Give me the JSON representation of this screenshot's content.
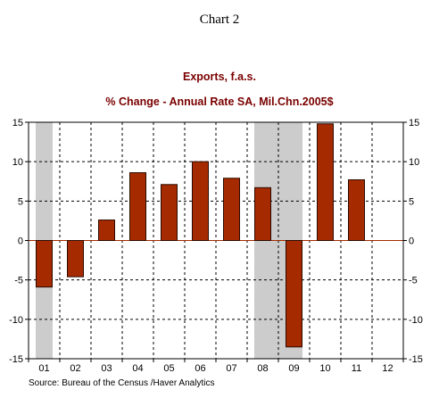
{
  "chart_data": {
    "type": "bar",
    "heading": "Chart 2",
    "title": "Exports, f.a.s.",
    "subtitle": "% Change - Annual Rate     SA, Mil.Chn.2005$",
    "categories": [
      "01",
      "02",
      "03",
      "04",
      "05",
      "06",
      "07",
      "08",
      "09",
      "10",
      "11",
      "12"
    ],
    "series": [
      {
        "values": [
          -5.9,
          -4.6,
          2.6,
          8.6,
          7.1,
          10.0,
          7.9,
          6.7,
          -13.5,
          14.8,
          7.7,
          null
        ]
      }
    ],
    "ylim": [
      -15,
      15
    ],
    "yticks": [
      -15,
      -10,
      -5,
      0,
      5,
      10,
      15
    ],
    "recessions": [
      {
        "from": "01",
        "to": "01"
      },
      {
        "from": "08",
        "to": "09"
      }
    ],
    "grid": true,
    "y_axis_both_sides": true,
    "colors": {
      "bar": "#a52a00",
      "bar_edge": "#2b0a00",
      "recession": "#cccccc",
      "zero_line": "#a52a00"
    },
    "source": "Source:  Bureau of the Census /Haver Analytics"
  }
}
